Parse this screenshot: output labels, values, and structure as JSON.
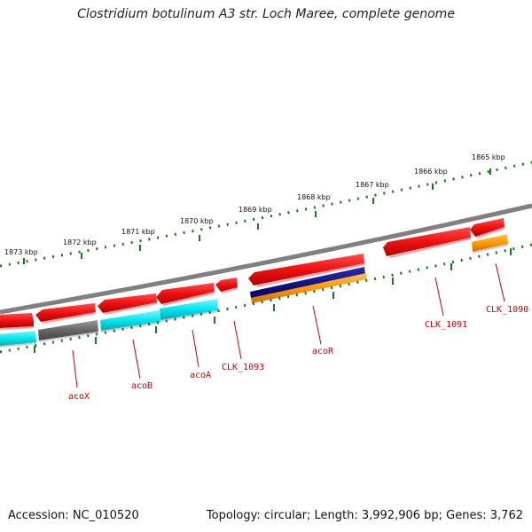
{
  "title": "Clostridium botulinum A3 str. Loch Maree, complete genome",
  "footer": {
    "accession": "Accession: NC_010520",
    "summary": "Topology: circular; Length: 3,992,906 bp; Genes: 3,762"
  },
  "scale": {
    "unit": "kbp",
    "ticks": [
      "1873 kbp",
      "1872 kbp",
      "1871 kbp",
      "1870 kbp",
      "1869 kbp",
      "1868 kbp",
      "1867 kbp",
      "1866 kbp",
      "1865 kbp"
    ]
  },
  "genes": [
    "acoX",
    "acoB",
    "acoA",
    "CLK_1093",
    "acoR",
    "CLK_1091",
    "CLK_1090"
  ],
  "colors": {
    "backbone": "#808080",
    "gene_red": "#ee1111",
    "cyan": "#00e5ee",
    "gray": "#666666",
    "navy": "#000080",
    "orange": "#ff9900",
    "tick_green": "#1a7a1a",
    "label_red": "#cc0000"
  }
}
